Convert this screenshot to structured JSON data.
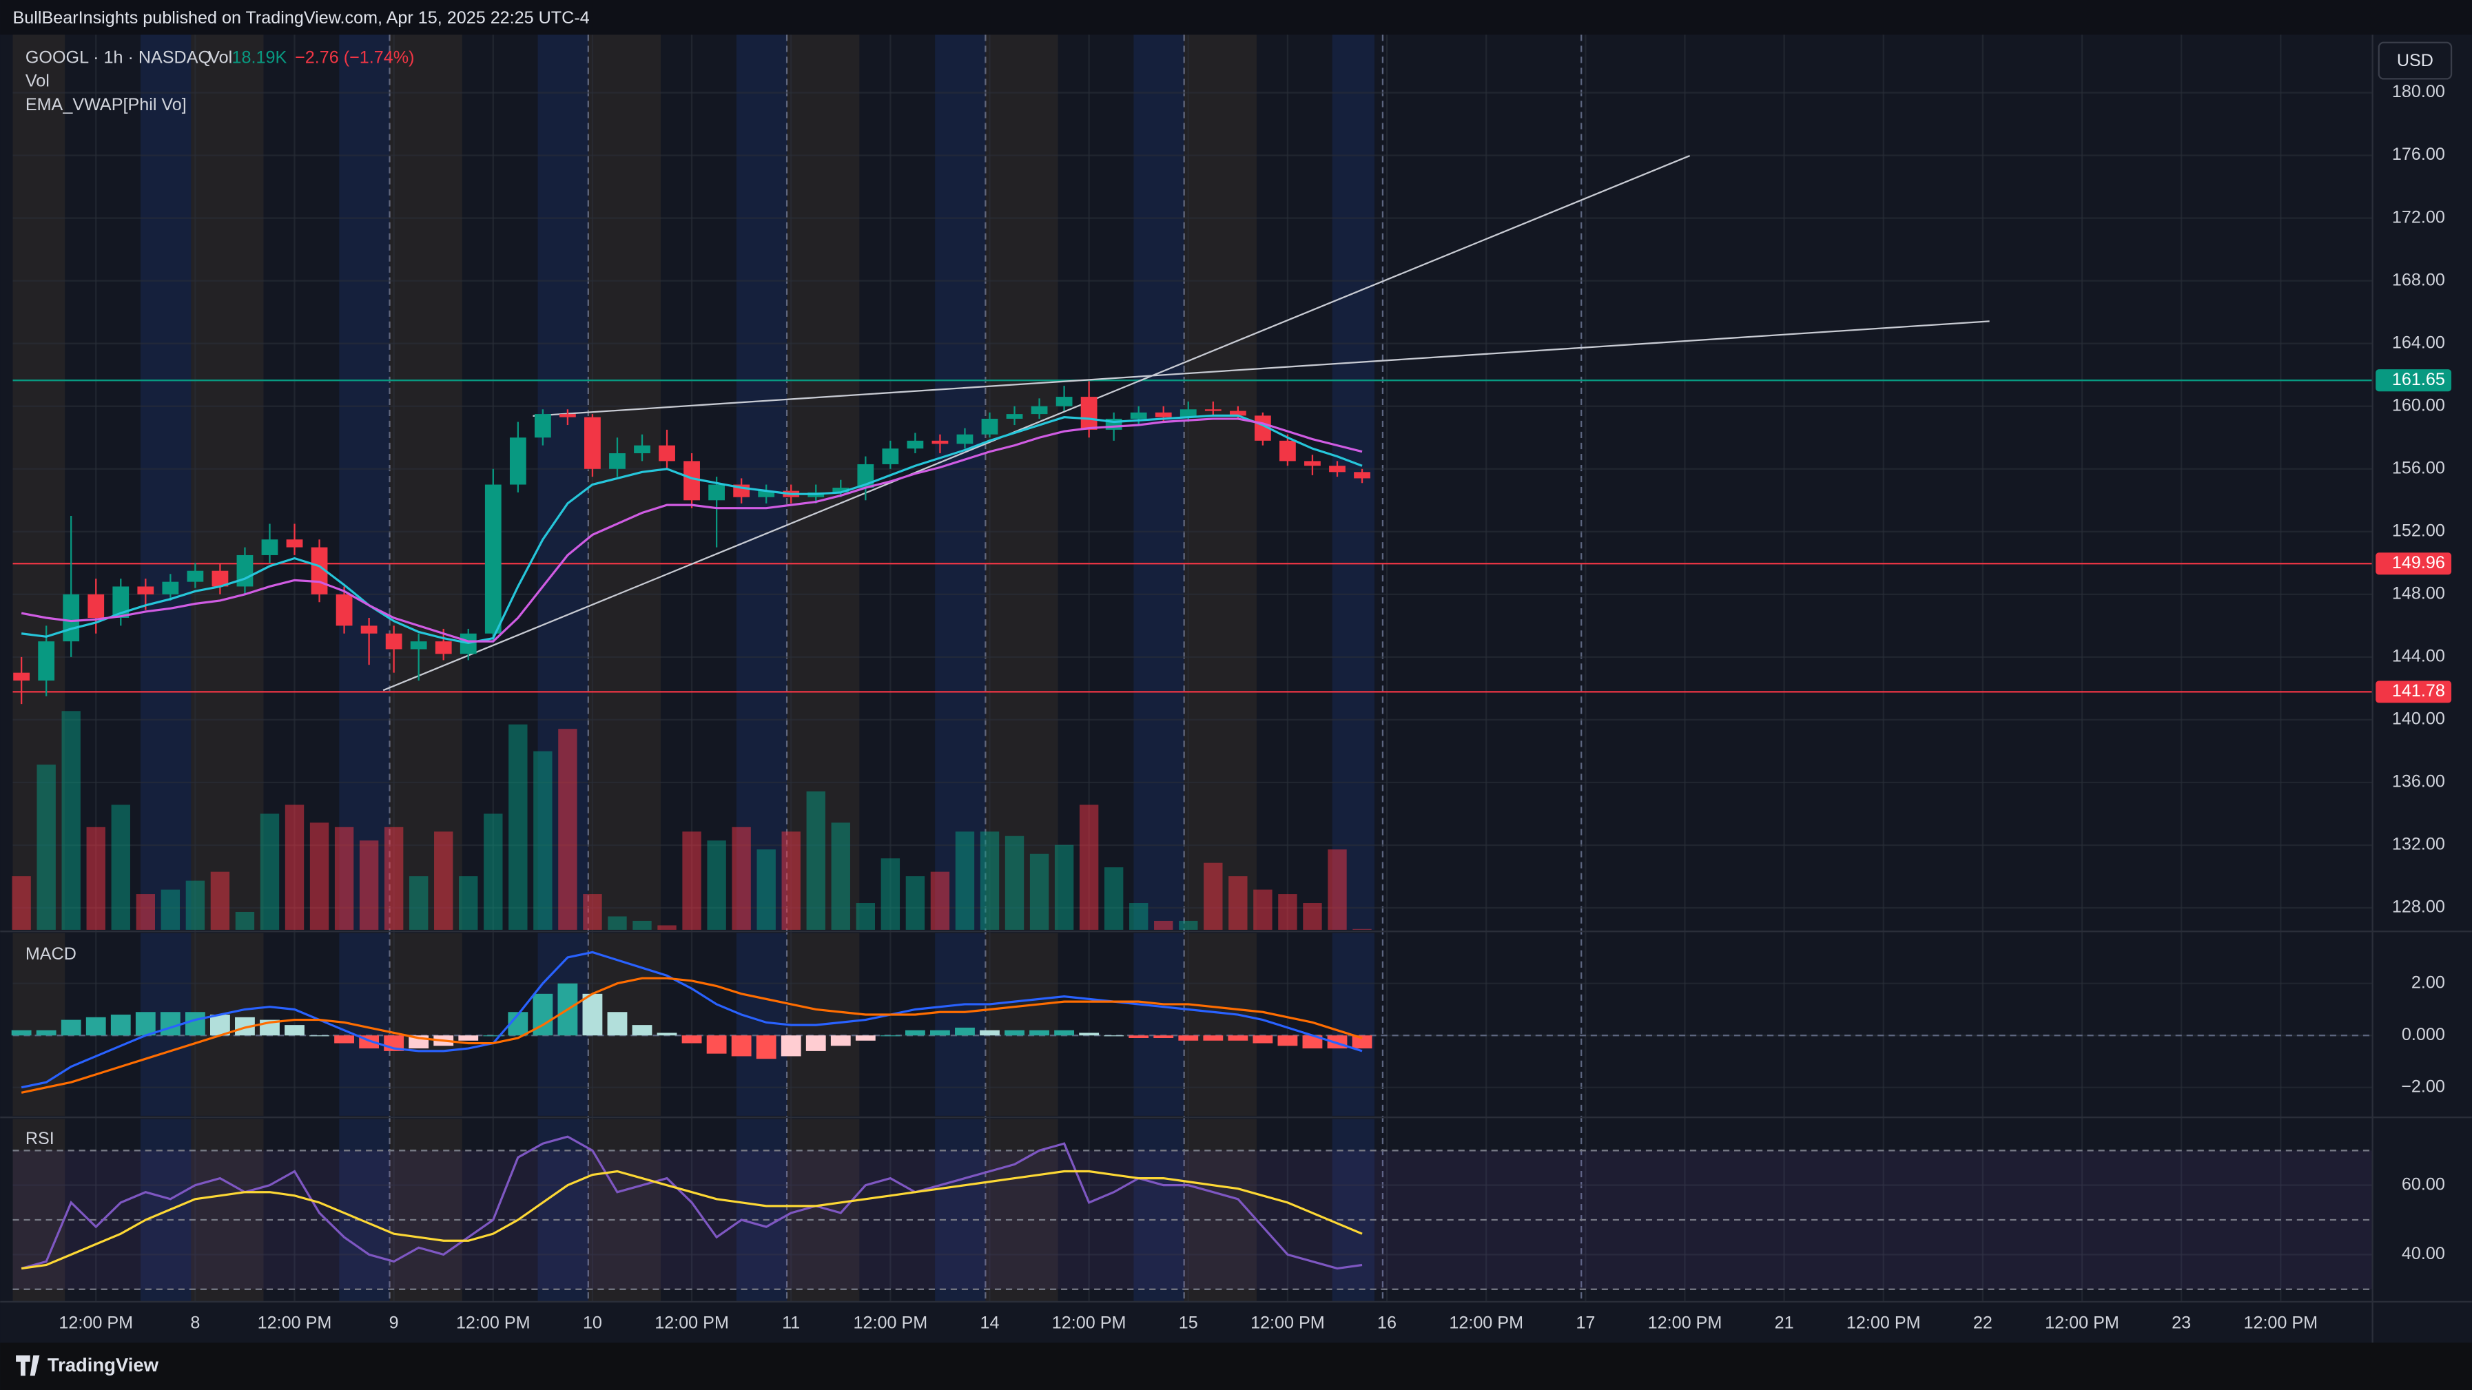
{
  "header": {
    "published": "BullBearInsights published on TradingView.com, Apr 15, 2025 22:25 UTC-4",
    "symbol": "GOOGL · 1h · NASDAQ",
    "vol_label": "Vol",
    "vol_value": "18.19K",
    "change": "−2.76 (−1.74%)",
    "indicator_labels": [
      "Vol",
      "EMA_VWAP[Phil Vo]"
    ],
    "currency": "USD",
    "brand": "TradingView"
  },
  "chart_data": [
    {
      "type": "candlestick",
      "ylim": [
        126.6,
        183.7
      ],
      "yticks": [
        {
          "value": 128,
          "label": "128.00"
        },
        {
          "value": 132,
          "label": "132.00"
        },
        {
          "value": 136,
          "label": "136.00"
        },
        {
          "value": 140,
          "label": "140.00"
        },
        {
          "value": 144,
          "label": "144.00"
        },
        {
          "value": 148,
          "label": "148.00"
        },
        {
          "value": 152,
          "label": "152.00"
        },
        {
          "value": 156,
          "label": "156.00"
        },
        {
          "value": 160,
          "label": "160.00"
        },
        {
          "value": 164,
          "label": "164.00"
        },
        {
          "value": 168,
          "label": "168.00"
        },
        {
          "value": 172,
          "label": "172.00"
        },
        {
          "value": 176,
          "label": "176.00"
        },
        {
          "value": 180,
          "label": "180.00"
        }
      ],
      "xlim": [
        -0.35,
        94.7
      ],
      "xticks": [
        {
          "value": 3,
          "label": "12:00 PM"
        },
        {
          "value": 7,
          "label": "8"
        },
        {
          "value": 11,
          "label": "12:00 PM"
        },
        {
          "value": 15,
          "label": "9"
        },
        {
          "value": 19,
          "label": "12:00 PM"
        },
        {
          "value": 23,
          "label": "10"
        },
        {
          "value": 27,
          "label": "12:00 PM"
        },
        {
          "value": 31,
          "label": "11"
        },
        {
          "value": 35,
          "label": "12:00 PM"
        },
        {
          "value": 39,
          "label": "14"
        },
        {
          "value": 43,
          "label": "12:00 PM"
        },
        {
          "value": 47,
          "label": "15"
        },
        {
          "value": 51,
          "label": "12:00 PM"
        },
        {
          "value": 55,
          "label": "16"
        },
        {
          "value": 59,
          "label": "12:00 PM"
        },
        {
          "value": 63,
          "label": "17"
        },
        {
          "value": 67,
          "label": "12:00 PM"
        },
        {
          "value": 71,
          "label": "21"
        },
        {
          "value": 75,
          "label": "12:00 PM"
        },
        {
          "value": 79,
          "label": "22"
        },
        {
          "value": 83,
          "label": "12:00 PM"
        },
        {
          "value": 87,
          "label": "23"
        },
        {
          "value": 91,
          "label": "12:00 PM"
        }
      ],
      "open": [
        143,
        142.5,
        145,
        148,
        146.5,
        148.5,
        148,
        148.8,
        149.5,
        148.5,
        150.5,
        151.5,
        151,
        148,
        146,
        145.5,
        144.5,
        145,
        144.2,
        145.5,
        155,
        158,
        159.5,
        159.3,
        156,
        157,
        157.5,
        156.5,
        154,
        155,
        154.2,
        154.6,
        154.2,
        154.5,
        154.8,
        156.3,
        157.3,
        157.8,
        157.6,
        158.2,
        159.2,
        159.5,
        160,
        160.6,
        158.5,
        159.2,
        159.6,
        159.3,
        159.8,
        159.7,
        159.4,
        157.8,
        156.5,
        156.2,
        155.8
      ],
      "high": [
        144,
        146,
        153,
        149,
        149,
        149,
        149.3,
        150,
        150,
        151,
        152.5,
        152.5,
        151.5,
        148.5,
        146.5,
        146,
        145.5,
        145.8,
        145.8,
        156,
        159,
        159.8,
        159.8,
        159.5,
        158,
        158.2,
        158.5,
        157,
        155.5,
        155.4,
        155,
        155,
        155,
        155.3,
        156.8,
        157.8,
        158.3,
        158.2,
        158.6,
        159.6,
        160,
        160.5,
        161.3,
        161.6,
        159.6,
        160,
        160,
        160.3,
        160.3,
        160,
        159.6,
        158.2,
        156.9,
        156.5,
        156
      ],
      "low": [
        141,
        141.5,
        144,
        145.5,
        146,
        147,
        147.6,
        148.4,
        148,
        148,
        150,
        150.5,
        147.5,
        145.5,
        143.5,
        143,
        142.5,
        143.8,
        143.8,
        145,
        154.5,
        157.5,
        158.8,
        155.5,
        155.5,
        156.5,
        156,
        153.5,
        151,
        153.8,
        153.8,
        153.8,
        153.8,
        154.2,
        154,
        156,
        157,
        157,
        157.3,
        158,
        158.8,
        159.2,
        159.7,
        158,
        157.8,
        158.8,
        159,
        159,
        159.4,
        159.2,
        157.5,
        156.2,
        155.6,
        155.5,
        155.1
      ],
      "close": [
        142.5,
        145,
        148,
        146.5,
        148.5,
        148,
        148.8,
        149.5,
        148.5,
        150.5,
        151.5,
        151,
        148,
        146,
        145.5,
        144.5,
        145,
        144.2,
        145.5,
        155,
        158,
        159.5,
        159.3,
        156,
        157,
        157.5,
        156.5,
        154,
        155,
        154.2,
        154.6,
        154.2,
        154.5,
        154.8,
        156.3,
        157.3,
        157.8,
        157.6,
        158.2,
        159.2,
        159.5,
        160,
        160.6,
        158.5,
        159.2,
        159.6,
        159.3,
        159.8,
        159.7,
        159.4,
        157.8,
        156.5,
        156.2,
        155.8,
        155.4
      ],
      "up_color": "#089981",
      "down_color": "#f23645",
      "volume": [
        1200,
        3700,
        4900,
        2300,
        2800,
        800,
        900,
        1100,
        1300,
        400,
        2600,
        2800,
        2400,
        2300,
        2000,
        2300,
        1200,
        2200,
        1200,
        2600,
        4600,
        4000,
        4500,
        800,
        300,
        200,
        100,
        2200,
        2000,
        2300,
        1800,
        2200,
        3100,
        2400,
        600,
        1600,
        1200,
        1300,
        2200,
        2200,
        2100,
        1700,
        1900,
        2800,
        1400,
        600,
        200,
        200,
        1500,
        1200,
        900,
        800,
        600,
        1800,
        18.19
      ],
      "volume_lim": [
        0,
        6000
      ],
      "lines": [
        {
          "color": "#26c6da",
          "values": [
            145.5,
            145.3,
            145.8,
            146.2,
            146.8,
            147.3,
            147.7,
            148.2,
            148.5,
            149,
            149.8,
            150.3,
            149.8,
            148.6,
            147.3,
            146.3,
            145.6,
            145.2,
            144.9,
            145.2,
            148.5,
            151.5,
            153.8,
            155,
            155.4,
            155.8,
            156,
            155.4,
            155.1,
            154.8,
            154.6,
            154.4,
            154.4,
            154.5,
            155,
            155.6,
            156.2,
            156.7,
            157.2,
            157.8,
            158.3,
            158.8,
            159.3,
            159.2,
            159,
            159.1,
            159.2,
            159.3,
            159.4,
            159.4,
            158.8,
            158,
            157.3,
            156.8,
            156.2
          ]
        },
        {
          "color": "#d05ce3",
          "values": [
            146.8,
            146.5,
            146.3,
            146.4,
            146.6,
            146.9,
            147.1,
            147.4,
            147.6,
            148,
            148.5,
            148.9,
            148.8,
            148.2,
            147.3,
            146.5,
            146,
            145.5,
            145,
            145,
            146.5,
            148.5,
            150.5,
            151.8,
            152.5,
            153.2,
            153.7,
            153.7,
            153.5,
            153.5,
            153.5,
            153.7,
            153.9,
            154.3,
            154.8,
            155.2,
            155.7,
            156.1,
            156.6,
            157.1,
            157.5,
            158,
            158.4,
            158.6,
            158.7,
            158.8,
            159,
            159.1,
            159.2,
            159.2,
            158.9,
            158.4,
            157.9,
            157.5,
            157.1
          ]
        }
      ],
      "levels": [
        {
          "value": 161.65,
          "color": "#089981"
        },
        {
          "value": 149.96,
          "color": "#f23645"
        },
        {
          "value": 141.78,
          "color": "#f23645"
        }
      ],
      "trendlines": [
        {
          "x": [
            14.57,
            67.2
          ],
          "y": [
            141.88,
            175.98
          ]
        },
        {
          "x": [
            20.6,
            79.27
          ],
          "y": [
            159.38,
            165.42
          ]
        }
      ]
    },
    {
      "type": "macd",
      "title": "MACD",
      "ylim": [
        -3.09,
        3.94
      ],
      "yticks": [
        {
          "value": 2,
          "label": "2.00"
        },
        {
          "value": 0,
          "label": "0.000"
        },
        {
          "value": -2,
          "label": "−2.00"
        }
      ],
      "levels": [
        0
      ],
      "histogram": [
        0.2,
        0.2,
        0.6,
        0.7,
        0.8,
        0.9,
        0.9,
        0.9,
        0.8,
        0.7,
        0.6,
        0.4,
        0,
        -0.3,
        -0.5,
        -0.6,
        -0.5,
        -0.4,
        -0.2,
        0,
        0.9,
        1.6,
        2.0,
        1.6,
        0.9,
        0.4,
        0.1,
        -0.3,
        -0.7,
        -0.8,
        -0.9,
        -0.8,
        -0.6,
        -0.4,
        -0.2,
        0,
        0.2,
        0.2,
        0.3,
        0.2,
        0.2,
        0.2,
        0.2,
        0.1,
        0,
        -0.1,
        -0.1,
        -0.2,
        -0.2,
        -0.2,
        -0.3,
        -0.4,
        -0.5,
        -0.5,
        -0.5
      ],
      "hist_colors": {
        "up_rising": "#26a69a",
        "up_falling": "#b2dfdb",
        "down_falling": "#ff5252",
        "down_rising": "#ffcdd2"
      },
      "lines": [
        {
          "color": "#2962ff",
          "values": [
            -2,
            -1.8,
            -1.2,
            -0.8,
            -0.4,
            0,
            0.3,
            0.6,
            0.8,
            1,
            1.1,
            1.0,
            0.6,
            0.2,
            -0.2,
            -0.5,
            -0.6,
            -0.6,
            -0.5,
            -0.3,
            0.8,
            2.0,
            3.0,
            3.2,
            2.9,
            2.6,
            2.3,
            1.8,
            1.2,
            0.8,
            0.5,
            0.4,
            0.4,
            0.5,
            0.6,
            0.8,
            1.0,
            1.1,
            1.2,
            1.2,
            1.3,
            1.4,
            1.5,
            1.4,
            1.3,
            1.2,
            1.1,
            1.0,
            0.9,
            0.8,
            0.6,
            0.3,
            0,
            -0.3,
            -0.6
          ]
        },
        {
          "color": "#ff6d00",
          "values": [
            -2.2,
            -2.0,
            -1.8,
            -1.5,
            -1.2,
            -0.9,
            -0.6,
            -0.3,
            0,
            0.3,
            0.5,
            0.6,
            0.6,
            0.5,
            0.3,
            0.1,
            -0.1,
            -0.2,
            -0.3,
            -0.3,
            -0.1,
            0.4,
            1.0,
            1.6,
            2.0,
            2.2,
            2.2,
            2.1,
            1.9,
            1.6,
            1.4,
            1.2,
            1.0,
            0.9,
            0.8,
            0.8,
            0.8,
            0.9,
            0.9,
            1.0,
            1.1,
            1.2,
            1.3,
            1.3,
            1.3,
            1.3,
            1.2,
            1.2,
            1.1,
            1.0,
            0.9,
            0.7,
            0.5,
            0.2,
            -0.1
          ]
        }
      ]
    },
    {
      "type": "rsi",
      "title": "RSI",
      "ylim": [
        26.4,
        79.1
      ],
      "yticks": [
        {
          "value": 60,
          "label": "60.00"
        },
        {
          "value": 40,
          "label": "40.00"
        }
      ],
      "levels": [
        70,
        50,
        30
      ],
      "lines": [
        {
          "color": "#7e57c2",
          "values": [
            36,
            38,
            55,
            48,
            55,
            58,
            56,
            60,
            62,
            58,
            60,
            64,
            52,
            45,
            40,
            38,
            42,
            40,
            45,
            50,
            68,
            72,
            74,
            70,
            58,
            60,
            62,
            55,
            45,
            50,
            48,
            52,
            54,
            52,
            60,
            62,
            58,
            60,
            62,
            64,
            66,
            70,
            72,
            55,
            58,
            62,
            60,
            60,
            58,
            56,
            48,
            40,
            38,
            36,
            37
          ]
        },
        {
          "color": "#fdd835",
          "values": [
            36,
            37,
            40,
            43,
            46,
            50,
            53,
            56,
            57,
            58,
            58,
            57,
            55,
            52,
            49,
            46,
            45,
            44,
            44,
            46,
            50,
            55,
            60,
            63,
            64,
            62,
            60,
            58,
            56,
            55,
            54,
            54,
            54,
            55,
            56,
            57,
            58,
            59,
            60,
            61,
            62,
            63,
            64,
            64,
            63,
            62,
            62,
            61,
            60,
            59,
            57,
            55,
            52,
            49,
            46
          ]
        }
      ]
    }
  ]
}
